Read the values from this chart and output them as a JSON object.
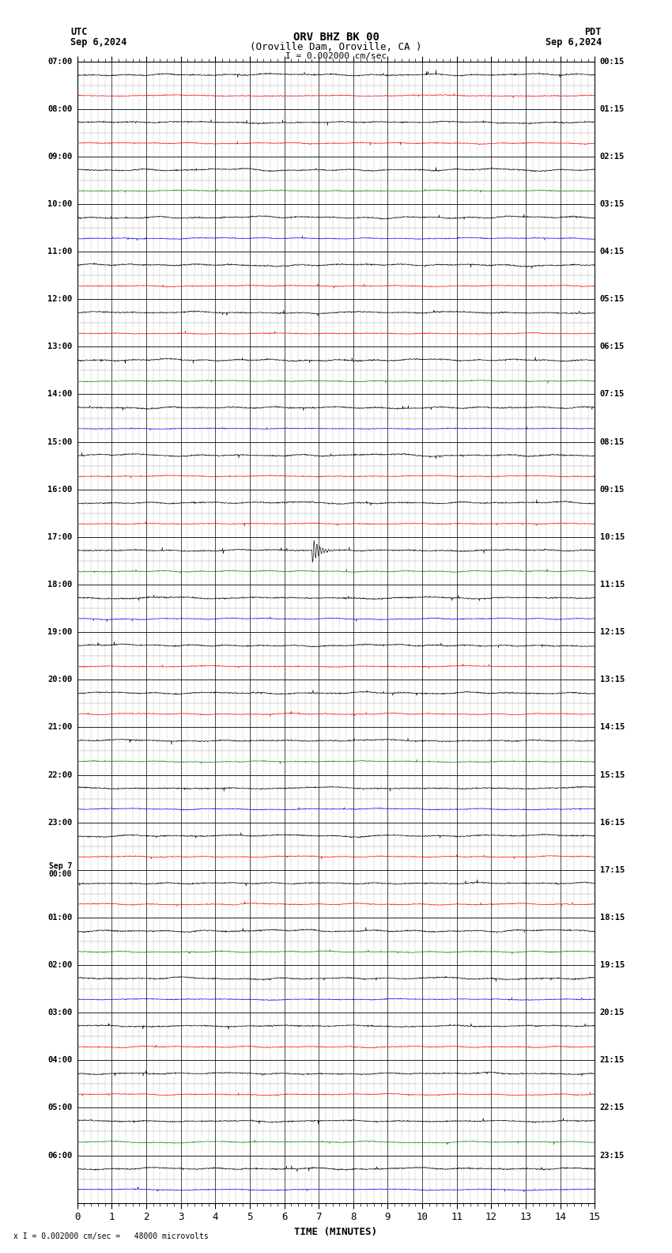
{
  "title_line1": "ORV BHZ BK 00",
  "title_line2": "(Oroville Dam, Oroville, CA )",
  "scale_text": "I = 0.002000 cm/sec",
  "bottom_label": "x I = 0.002000 cm/sec =   48000 microvolts",
  "utc_label": "UTC",
  "pdt_label": "PDT",
  "utc_date": "Sep 6,2024",
  "pdt_date": "Sep 6,2024",
  "xlabel": "TIME (MINUTES)",
  "left_times": [
    "07:00",
    "08:00",
    "09:00",
    "10:00",
    "11:00",
    "12:00",
    "13:00",
    "14:00",
    "15:00",
    "16:00",
    "17:00",
    "18:00",
    "19:00",
    "20:00",
    "21:00",
    "22:00",
    "23:00",
    "Sep 7\n00:00",
    "01:00",
    "02:00",
    "03:00",
    "04:00",
    "05:00",
    "06:00"
  ],
  "right_times": [
    "00:15",
    "01:15",
    "02:15",
    "03:15",
    "04:15",
    "05:15",
    "06:15",
    "07:15",
    "08:15",
    "09:15",
    "10:15",
    "11:15",
    "12:15",
    "13:15",
    "14:15",
    "15:15",
    "16:15",
    "17:15",
    "18:15",
    "19:15",
    "20:15",
    "21:15",
    "22:15",
    "23:15"
  ],
  "num_rows": 24,
  "bg_color": "#ffffff",
  "trace_color_black": "#000000",
  "trace_color_red": "#ff0000",
  "trace_color_blue": "#0000ff",
  "trace_color_green": "#008000",
  "xmin": 0,
  "xmax": 15,
  "noise_amplitude": 0.022,
  "earthquake_row": 10,
  "earthquake_minute": 6.8,
  "earthquake_amplitude": 0.28
}
